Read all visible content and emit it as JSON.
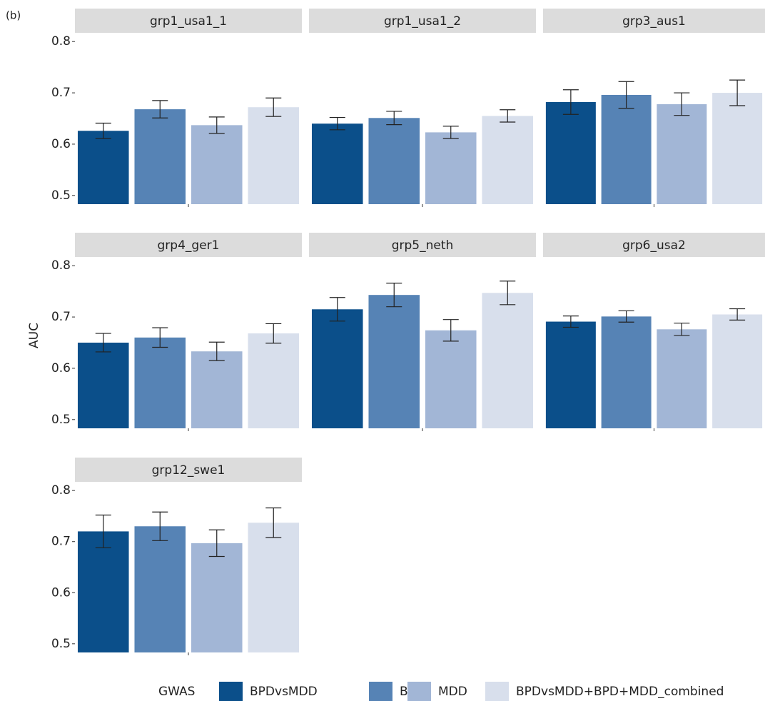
{
  "chart_data": {
    "type": "bar",
    "panel_label": "(b)",
    "y_label": "AUC",
    "legend_title": "GWAS",
    "series": [
      {
        "name": "BPDvsMDD",
        "color": "#0b4f8a"
      },
      {
        "name": "BPD",
        "color": "#5683b5"
      },
      {
        "name": "MDD",
        "color": "#a2b6d6"
      },
      {
        "name": "BPDvsMDD+BPD+MDD_combined",
        "color": "#d8dfec"
      }
    ],
    "ylim": [
      0.483,
      0.817
    ],
    "yticks": [
      0.5,
      0.6,
      0.7,
      0.8
    ],
    "facets": [
      {
        "title": "grp1_usa1_1",
        "values": [
          0.626,
          0.668,
          0.637,
          0.672
        ],
        "errors": [
          0.015,
          0.017,
          0.016,
          0.018
        ]
      },
      {
        "title": "grp1_usa1_2",
        "values": [
          0.64,
          0.651,
          0.623,
          0.655
        ],
        "errors": [
          0.012,
          0.013,
          0.012,
          0.012
        ]
      },
      {
        "title": "grp3_aus1",
        "values": [
          0.682,
          0.696,
          0.678,
          0.7
        ],
        "errors": [
          0.024,
          0.026,
          0.022,
          0.025
        ]
      },
      {
        "title": "grp4_ger1",
        "values": [
          0.65,
          0.66,
          0.633,
          0.668
        ],
        "errors": [
          0.018,
          0.019,
          0.018,
          0.019
        ]
      },
      {
        "title": "grp5_neth",
        "values": [
          0.715,
          0.743,
          0.674,
          0.747
        ],
        "errors": [
          0.023,
          0.023,
          0.021,
          0.023
        ]
      },
      {
        "title": "grp6_usa2",
        "values": [
          0.691,
          0.701,
          0.676,
          0.705
        ],
        "errors": [
          0.011,
          0.011,
          0.012,
          0.011
        ]
      },
      {
        "title": "grp12_swe1",
        "values": [
          0.72,
          0.73,
          0.697,
          0.737
        ],
        "errors": [
          0.032,
          0.028,
          0.026,
          0.029
        ]
      }
    ]
  }
}
